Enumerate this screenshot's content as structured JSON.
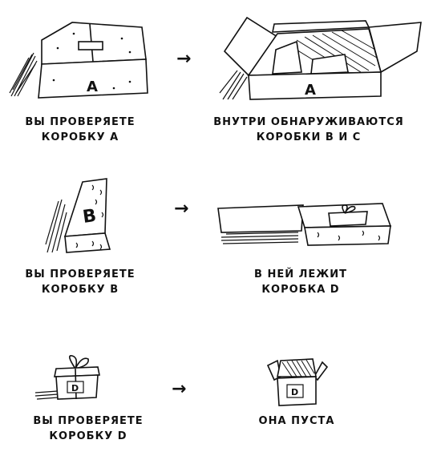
{
  "rows": [
    {
      "left": {
        "line1": "ВЫ ПРОВЕРЯЕТЕ",
        "line2": "КОРОБКУ А",
        "box_letter": "A"
      },
      "right": {
        "line1": "ВНУТРИ ОБНАРУЖИВАЮТСЯ",
        "line2": "КОРОБКИ В И С",
        "box_letter": "A"
      },
      "arrow": "→"
    },
    {
      "left": {
        "line1": "ВЫ ПРОВЕРЯЕТЕ",
        "line2": "КОРОБКУ В",
        "box_letter": "B"
      },
      "right": {
        "line1": "В НЕЙ ЛЕЖИТ",
        "line2": "КОРОБКА D"
      },
      "arrow": "→"
    },
    {
      "left": {
        "line1": "ВЫ ПРОВЕРЯЕТЕ",
        "line2": "КОРОБКУ D",
        "box_letter": "D"
      },
      "right": {
        "line1": "ОНА ПУСТА",
        "box_letter": "D"
      },
      "arrow": "→"
    }
  ]
}
